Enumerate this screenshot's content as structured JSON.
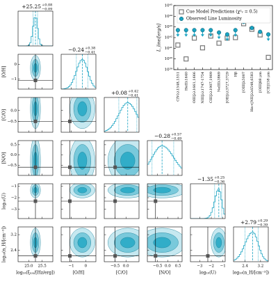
{
  "chart_data": [
    {
      "type": "corner",
      "color": "#1aa3c2",
      "parameters": [
        {
          "label": "log₁₀(ξᵢₒₙ/[Hz/erg])",
          "lim": [
            24.6,
            25.9
          ],
          "ticks": [
            {
              "value": 25.0,
              "label": "25.0"
            },
            25.5
          ],
          "median": 25.25,
          "median_label": "+25.25",
          "err_plus": 0.08,
          "err_plus_label": "+0.08",
          "err_minus": 0.09,
          "err_minus_label": "−0.09",
          "reference": 25.25
        },
        {
          "label": "[O/H]",
          "lim": [
            -1.7,
            0.7
          ],
          "ticks": [
            {
              "value": -1,
              "label": "−1"
            },
            0
          ],
          "median": -0.24,
          "median_label": "−0.24",
          "err_plus": 0.38,
          "err_plus_label": "+0.38",
          "err_minus": 0.41,
          "err_minus_label": "−0.41",
          "reference": -1.1
        },
        {
          "label": "[C/O]",
          "lim": [
            -1.0,
            0.6
          ],
          "ticks": [
            {
              "value": -0.5,
              "label": "−0.5"
            },
            {
              "value": 0.0,
              "label": "0.0"
            }
          ],
          "median": 0.08,
          "median_label": "+0.08",
          "err_plus": 0.42,
          "err_plus_label": "+0.42",
          "err_minus": 0.41,
          "err_minus_label": "−0.41",
          "reference": -0.5
        },
        {
          "label": "[N/O]",
          "lim": [
            -1.0,
            0.7
          ],
          "ticks": [
            {
              "value": -0.5,
              "label": "−0.5"
            },
            {
              "value": 0.0,
              "label": "0.0"
            },
            0.5
          ],
          "median": -0.28,
          "median_label": "−0.28",
          "err_plus": 0.57,
          "err_plus_label": "+0.57",
          "err_minus": 0.49,
          "err_minus_label": "−0.49",
          "reference": -0.6
        },
        {
          "label": "log₁₀(U)",
          "lim": [
            -3.8,
            -0.8
          ],
          "ticks": [
            {
              "value": -3,
              "label": "−3"
            },
            {
              "value": -2,
              "label": "−2"
            },
            {
              "value": -1,
              "label": "−1"
            }
          ],
          "median": -1.35,
          "median_label": "−1.35",
          "err_plus": 0.25,
          "err_plus_label": "+0.25",
          "err_minus": 0.36,
          "err_minus_label": "−0.36",
          "reference": -2.3
        },
        {
          "label": "log₁₀(n_H/[cm⁻³])",
          "lim": [
            1.8,
            3.6
          ],
          "ticks": [
            2.4,
            3.2
          ],
          "median": 2.79,
          "median_label": "+2.79",
          "err_plus": 0.29,
          "err_plus_label": "+0.29",
          "err_minus": 0.39,
          "err_minus_label": "−0.39",
          "reference": 2.1
        }
      ]
    },
    {
      "type": "scatter",
      "log_y": true,
      "ylabel": "L_line/[erg/s]",
      "legend": "upper right",
      "categories": [
        "CIVλλ1548,1551",
        "HeIIλ1640",
        "OIII]λλ1661,1666",
        "NIII]λλ1747-1754",
        "CIII]λλ1907,1909",
        "NeIIIλ3869",
        "[OII]λλ3727,3729",
        "Hβ",
        "[OIII]λ5007",
        "Hα+[NII]λλ6548,6583",
        "[OIII]88 μm",
        "[CII]158 μm"
      ],
      "ylim": [
        1e+39,
        1e+45
      ],
      "yticks": [
        {
          "value": 1e+39,
          "label": "10³⁹"
        },
        {
          "value": 1e+40,
          "label": "10⁴⁰"
        },
        {
          "value": 1e+41,
          "label": "10⁴¹"
        },
        {
          "value": 1e+42,
          "label": "10⁴²"
        },
        {
          "value": 1e+43,
          "label": "10⁴³"
        },
        {
          "value": 1e+44,
          "label": "10⁴⁴"
        },
        {
          "value": 1e+45,
          "label": "10⁴⁵"
        }
      ],
      "series": [
        {
          "name": "Cue Model Predictions (χ²ᵥ = 0.5)",
          "color": "#777777",
          "marker": "square",
          "values": [
            2e+41,
            1e+40,
            9e+41,
            1.1e+41,
            1.4e+42,
            3e+41,
            9e+41,
            1e+42,
            2e+43,
            6e+42,
            1.8e+42,
            1.4e+40
          ]
        },
        {
          "name": "Observed Line Luminosity",
          "color": "#1aa3c2",
          "marker": "circle",
          "values": [
            5e+42,
            5e+42,
            5e+42,
            5e+42,
            5e+42,
            3e+42,
            2e+42,
            5e+42,
            3e+43,
            8e+42,
            3.5e+42,
            2e+42
          ],
          "upper_limits": [
            true,
            true,
            true,
            true,
            true,
            true,
            true,
            true,
            false,
            false,
            false,
            true
          ]
        }
      ]
    }
  ]
}
